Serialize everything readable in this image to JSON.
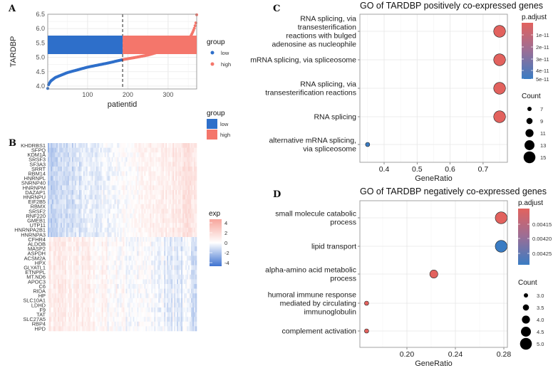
{
  "panels": {
    "a": "A",
    "b": "B",
    "c": "C",
    "d": "D"
  },
  "colors": {
    "low": "#2E6FCA",
    "high": "#F4766B",
    "go_red": "#E2625E",
    "go_blue": "#3A7CC3",
    "heat_high": "#F7A59C",
    "heat_low": "#3F73D1"
  },
  "chart_data": [
    {
      "type": "scatter",
      "panel": "A",
      "xlabel": "patientid",
      "ylabel": "TARDBP",
      "xlim": [
        1,
        371
      ],
      "ylim": [
        3.9,
        6.5
      ],
      "x_ticks": [
        "100",
        "200",
        "300"
      ],
      "y_ticks": [
        "4.0",
        "4.5",
        "5.0",
        "5.5",
        "6.0",
        "6.5"
      ],
      "cutoff_patient": 187,
      "grid": true,
      "legend": {
        "title": "group",
        "position": "right",
        "entries": [
          "low",
          "high"
        ]
      },
      "curve": [
        [
          1,
          3.92
        ],
        [
          3,
          4.05
        ],
        [
          8,
          4.17
        ],
        [
          20,
          4.3
        ],
        [
          50,
          4.47
        ],
        [
          100,
          4.66
        ],
        [
          150,
          4.8
        ],
        [
          187,
          4.92
        ],
        [
          220,
          5.0
        ],
        [
          250,
          5.08
        ],
        [
          280,
          5.2
        ],
        [
          310,
          5.35
        ],
        [
          340,
          5.55
        ],
        [
          355,
          5.7
        ],
        [
          362,
          5.9
        ],
        [
          366,
          6.05
        ],
        [
          370,
          6.25
        ],
        [
          371,
          6.48
        ]
      ]
    },
    {
      "type": "heatmap",
      "panel": "B",
      "annotation": {
        "title": "group",
        "entries": [
          "low",
          "high"
        ]
      },
      "color_scale": {
        "title": "exp",
        "ticks": [
          "4",
          "2",
          "0",
          "-2",
          "-4"
        ],
        "range": [
          -4,
          4
        ]
      },
      "genes_positive": [
        "KHDRBS1",
        "SFPQ",
        "KDM1A",
        "SRSF3",
        "SF3A3",
        "SRRT",
        "RBM14",
        "HNRNPL",
        "SNRNP40",
        "HNRNPM",
        "DAZAP1",
        "HNRNPU",
        "EIF2B5",
        "RBMX",
        "SRSF2",
        "RNF220",
        "GMEB1",
        "UTP11",
        "HNRNPA2B1",
        "HNRNPA3"
      ],
      "genes_negative": [
        "CFHR4",
        "ALDOB",
        "MASP2",
        "ASPDH",
        "ACSM2A",
        "HPX",
        "GLYATL1",
        "ETNPPL",
        "MT.ND6",
        "APOC3",
        "C6",
        "RIDA",
        "HP",
        "SLC10A1",
        "LDHD",
        "F9",
        "TAT",
        "SLC27A5",
        "RBP4",
        "HPD"
      ]
    },
    {
      "type": "scatter",
      "panel": "C",
      "title": "GO of TARDBP positively co-expressed genes",
      "xlabel": "GeneRatio",
      "x_ticks": [
        "0.4",
        "0.5",
        "0.6",
        "0.7"
      ],
      "categories": [
        [
          "RNA splicing, via",
          "transesterification",
          "reactions with bulged",
          "adenosine as nucleophile"
        ],
        [
          "mRNA splicing, via spliceosome"
        ],
        [
          "RNA splicing, via",
          "transesterification reactions"
        ],
        [
          "RNA splicing"
        ],
        [
          "alternative mRNA splicing,",
          "via spliceosome"
        ]
      ],
      "gene_ratio": [
        0.75,
        0.75,
        0.75,
        0.75,
        0.35
      ],
      "count": [
        15,
        15,
        15,
        15,
        7
      ],
      "p_color": [
        "red",
        "red",
        "red",
        "red",
        "blue"
      ],
      "color_legend": {
        "title": "p.adjust",
        "ticks": [
          "1e-11",
          "2e-11",
          "3e-11",
          "4e-11",
          "5e-11"
        ]
      },
      "size_legend": {
        "title": "Count",
        "ticks": [
          "7",
          "9",
          "11",
          "13",
          "15"
        ]
      }
    },
    {
      "type": "scatter",
      "panel": "D",
      "title": "GO of TARDBP negatively co-expressed genes",
      "xlabel": "GeneRatio",
      "x_ticks": [
        "0.20",
        "0.24",
        "0.28"
      ],
      "categories": [
        [
          "small molecule catabolic",
          "process"
        ],
        [
          "lipid transport"
        ],
        [
          "alpha-amino acid metabolic",
          "process"
        ],
        [
          "humoral immune response",
          "mediated by circulating",
          "immunoglobulin"
        ],
        [
          "complement activation"
        ]
      ],
      "gene_ratio": [
        0.2778,
        0.2778,
        0.2222,
        0.1667,
        0.1667
      ],
      "count": [
        5,
        5,
        4,
        3,
        3
      ],
      "p_color": [
        "red",
        "blue",
        "red",
        "red",
        "red"
      ],
      "color_legend": {
        "title": "p.adjust",
        "ticks": [
          "0.00415",
          "0.00420",
          "0.00425"
        ]
      },
      "size_legend": {
        "title": "Count",
        "ticks": [
          "3.0",
          "3.5",
          "4.0",
          "4.5",
          "5.0"
        ]
      }
    }
  ]
}
